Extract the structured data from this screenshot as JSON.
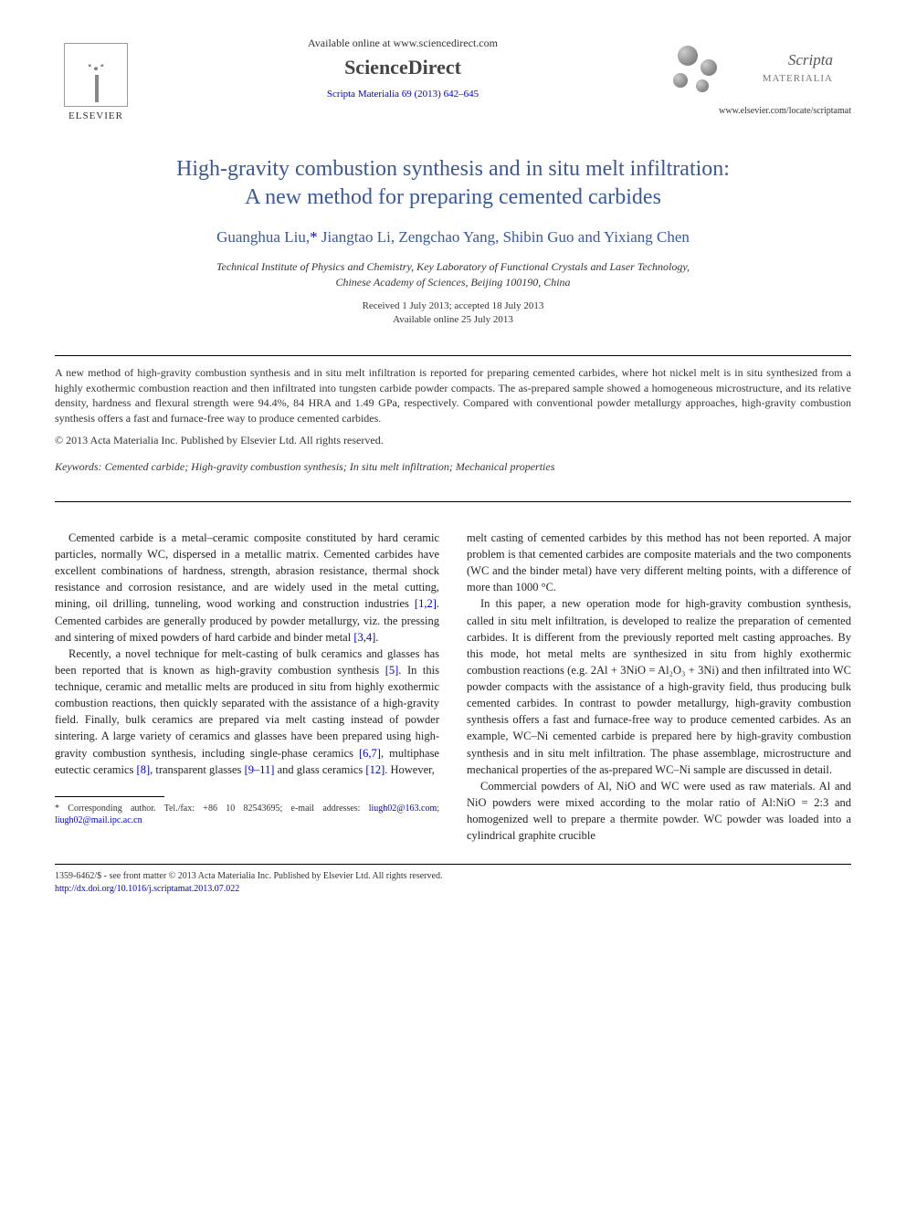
{
  "header": {
    "available_online": "Available online at www.sciencedirect.com",
    "sciencedirect": "ScienceDirect",
    "citation": "Scripta Materialia 69 (2013) 642–645",
    "elsevier_label": "ELSEVIER",
    "journal_name": "Scripta",
    "journal_name_sub": "MATERIALIA",
    "locate_url": "www.elsevier.com/locate/scriptamat"
  },
  "article": {
    "title_line1": "High-gravity combustion synthesis and in situ melt infiltration:",
    "title_line2": "A new method for preparing cemented carbides",
    "authors": "Guanghua Liu,",
    "corr_marker": "*",
    "authors_rest": " Jiangtao Li, Zengchao Yang, Shibin Guo and Yixiang Chen",
    "affiliation_line1": "Technical Institute of Physics and Chemistry, Key Laboratory of Functional Crystals and Laser Technology,",
    "affiliation_line2": "Chinese Academy of Sciences, Beijing 100190, China",
    "received": "Received 1 July 2013; accepted 18 July 2013",
    "available": "Available online 25 July 2013"
  },
  "abstract": {
    "text": "A new method of high-gravity combustion synthesis and in situ melt infiltration is reported for preparing cemented carbides, where hot nickel melt is in situ synthesized from a highly exothermic combustion reaction and then infiltrated into tungsten carbide powder compacts. The as-prepared sample showed a homogeneous microstructure, and its relative density, hardness and flexural strength were 94.4%, 84 HRA and 1.49 GPa, respectively. Compared with conventional powder metallurgy approaches, high-gravity combustion synthesis offers a fast and furnace-free way to produce cemented carbides.",
    "copyright": "© 2013 Acta Materialia Inc. Published by Elsevier Ltd. All rights reserved."
  },
  "keywords": {
    "label": "Keywords:",
    "text": " Cemented carbide; High-gravity combustion synthesis; In situ melt infiltration; Mechanical properties"
  },
  "body": {
    "col1": {
      "p1a": "Cemented carbide is a metal–ceramic composite constituted by hard ceramic particles, normally WC, dispersed in a metallic matrix. Cemented carbides have excellent combinations of hardness, strength, abrasion resistance, thermal shock resistance and corrosion resistance, and are widely used in the metal cutting, mining, oil drilling, tunneling, wood working and construction industries ",
      "ref1": "[1,2]",
      "p1b": ". Cemented carbides are generally produced by powder metallurgy, viz. the pressing and sintering of mixed powders of hard carbide and binder metal ",
      "ref2": "[3,4]",
      "p1c": ".",
      "p2a": "Recently, a novel technique for melt-casting of bulk ceramics and glasses has been reported that is known as high-gravity combustion synthesis ",
      "ref3": "[5]",
      "p2b": ". In this technique, ceramic and metallic melts are produced in situ from highly exothermic combustion reactions, then quickly separated with the assistance of a high-gravity field. Finally, bulk ceramics are prepared via melt casting instead of powder sintering. A large variety of ceramics and glasses have been prepared using high-gravity combustion synthesis, including single-phase ceramics ",
      "ref4": "[6,7]",
      "p2c": ", multiphase eutectic ceramics ",
      "ref5": "[8]",
      "p2d": ", transparent glasses ",
      "ref6": "[9–11]",
      "p2e": " and glass ceramics ",
      "ref7": "[12]",
      "p2f": ". However,"
    },
    "col2": {
      "p1": "melt casting of cemented carbides by this method has not been reported. A major problem is that cemented carbides are composite materials and the two components (WC and the binder metal) have very different melting points, with a difference of more than 1000 °C.",
      "p2": "In this paper, a new operation mode for high-gravity combustion synthesis, called in situ melt infiltration, is developed to realize the preparation of cemented carbides. It is different from the previously reported melt casting approaches. By this mode, hot metal melts are synthesized in situ from highly exothermic combustion reactions (e.g. 2Al + 3NiO = Al₂O₃ + 3Ni) and then infiltrated into WC powder compacts with the assistance of a high-gravity field, thus producing bulk cemented carbides. In contrast to powder metallurgy, high-gravity combustion synthesis offers a fast and furnace-free way to produce cemented carbides. As an example, WC–Ni cemented carbide is prepared here by high-gravity combustion synthesis and in situ melt infiltration. The phase assemblage, microstructure and mechanical properties of the as-prepared WC–Ni sample are discussed in detail.",
      "p3": "Commercial powders of Al, NiO and WC were used as raw materials. Al and NiO powders were mixed according to the molar ratio of Al:NiO = 2:3 and homogenized well to prepare a thermite powder. WC powder was loaded into a cylindrical graphite crucible"
    }
  },
  "footnote": {
    "marker": "*",
    "text": " Corresponding author. Tel./fax: +86 10 82543695; e-mail addresses: ",
    "email1": "liugh02@163.com",
    "sep": "; ",
    "email2": "liugh02@mail.ipc.ac.cn"
  },
  "bottom": {
    "line1": "1359-6462/$ - see front matter © 2013 Acta Materialia Inc. Published by Elsevier Ltd. All rights reserved.",
    "doi": "http://dx.doi.org/10.1016/j.scriptamat.2013.07.022"
  },
  "colors": {
    "title_color": "#3b5998",
    "link_color": "#0000cc",
    "text_color": "#333333",
    "background": "#ffffff"
  }
}
